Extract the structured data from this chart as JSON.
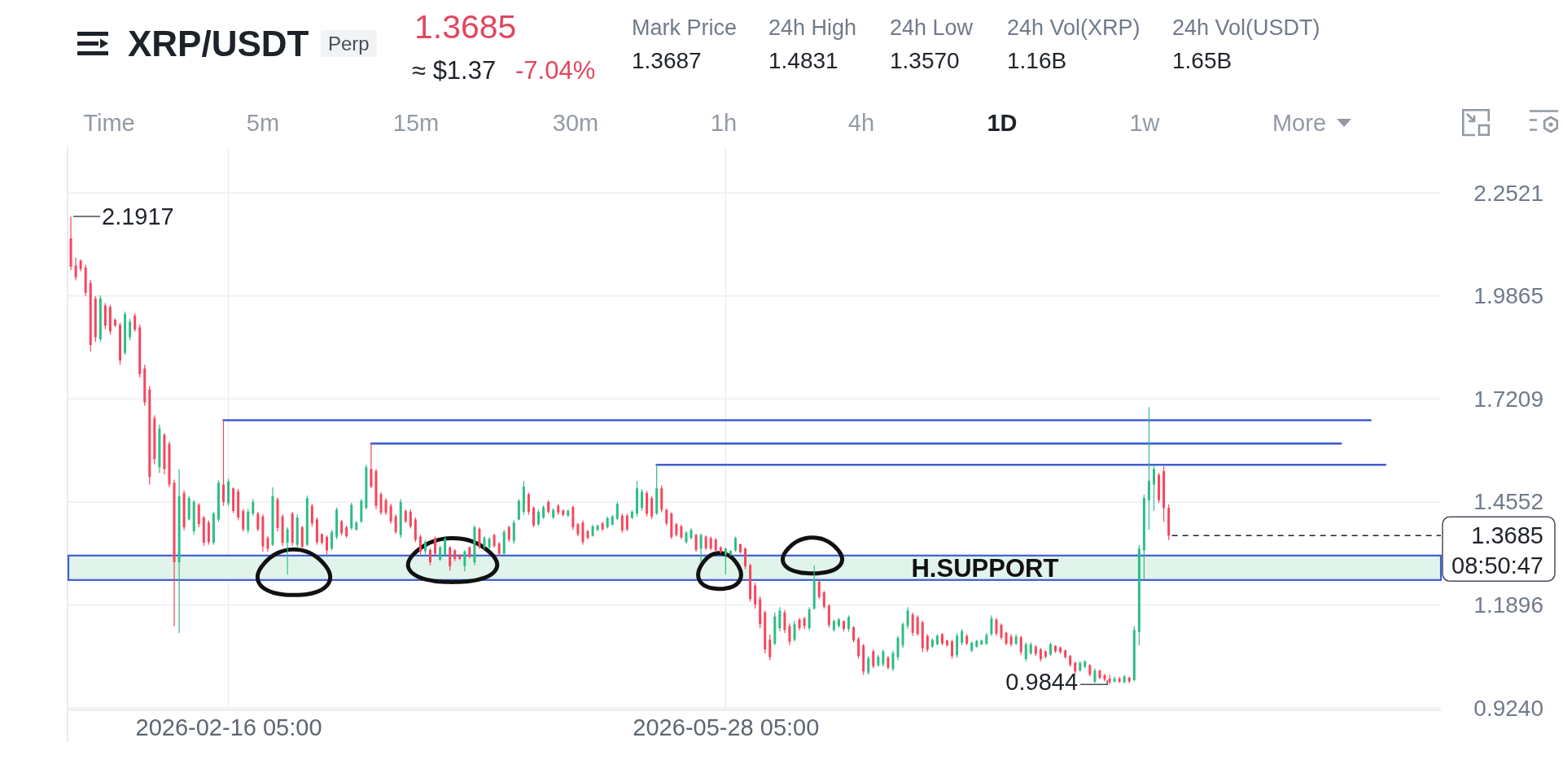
{
  "chart_data": {
    "type": "candlestick",
    "title": "XRP/USDT",
    "subtitle": "Perp",
    "x": [
      "2026-01-15T05:00",
      "2026-01-16T05:00",
      "2026-01-17T05:00",
      "2026-01-18T05:00",
      "2026-01-19T05:00",
      "2026-01-20T05:00",
      "2026-01-21T05:00",
      "2026-01-22T05:00",
      "2026-01-23T05:00",
      "2026-01-24T05:00",
      "2026-01-25T05:00",
      "2026-01-26T05:00",
      "2026-01-27T05:00",
      "2026-01-28T05:00",
      "2026-01-29T05:00",
      "2026-01-30T05:00",
      "2026-01-31T05:00",
      "2026-02-01T05:00",
      "2026-02-02T05:00",
      "2026-02-03T05:00",
      "2026-02-04T05:00",
      "2026-02-05T05:00",
      "2026-02-06T05:00",
      "2026-02-07T05:00",
      "2026-02-08T05:00",
      "2026-02-09T05:00",
      "2026-02-10T05:00",
      "2026-02-11T05:00",
      "2026-02-12T05:00",
      "2026-02-13T05:00",
      "2026-02-14T05:00",
      "2026-02-15T05:00",
      "2026-02-16T05:00",
      "2026-02-17T05:00",
      "2026-02-18T05:00",
      "2026-02-19T05:00",
      "2026-02-20T05:00",
      "2026-02-21T05:00",
      "2026-02-22T05:00",
      "2026-02-23T05:00",
      "2026-02-24T05:00",
      "2026-02-25T05:00",
      "2026-02-26T05:00",
      "2026-02-27T05:00",
      "2026-02-28T05:00",
      "2026-03-01T05:00",
      "2026-03-02T05:00",
      "2026-03-03T05:00",
      "2026-03-04T05:00",
      "2026-03-05T05:00",
      "2026-03-06T05:00",
      "2026-03-07T05:00",
      "2026-03-08T05:00",
      "2026-03-09T05:00",
      "2026-03-10T05:00",
      "2026-03-11T05:00",
      "2026-03-12T05:00",
      "2026-03-13T05:00",
      "2026-03-14T05:00",
      "2026-03-15T05:00",
      "2026-03-16T05:00",
      "2026-03-17T05:00",
      "2026-03-18T05:00",
      "2026-03-19T05:00",
      "2026-03-20T05:00",
      "2026-03-21T05:00",
      "2026-03-22T05:00",
      "2026-03-23T05:00",
      "2026-03-24T05:00",
      "2026-03-25T05:00",
      "2026-03-26T05:00",
      "2026-03-27T05:00",
      "2026-03-28T05:00",
      "2026-03-29T05:00",
      "2026-03-30T05:00",
      "2026-03-31T05:00",
      "2026-04-01T05:00",
      "2026-04-02T05:00",
      "2026-04-03T05:00",
      "2026-04-04T05:00",
      "2026-04-05T05:00",
      "2026-04-06T05:00",
      "2026-04-07T05:00",
      "2026-04-08T05:00",
      "2026-04-09T05:00",
      "2026-04-10T05:00",
      "2026-04-11T05:00",
      "2026-04-12T05:00",
      "2026-04-13T05:00",
      "2026-04-14T05:00",
      "2026-04-15T05:00",
      "2026-04-16T05:00",
      "2026-04-17T05:00",
      "2026-04-18T05:00",
      "2026-04-19T05:00",
      "2026-04-20T05:00",
      "2026-04-21T05:00",
      "2026-04-22T05:00",
      "2026-04-23T05:00",
      "2026-04-24T05:00",
      "2026-04-25T05:00",
      "2026-04-26T05:00",
      "2026-04-27T05:00",
      "2026-04-28T05:00",
      "2026-04-29T05:00",
      "2026-04-30T05:00",
      "2026-05-01T05:00",
      "2026-05-02T05:00",
      "2026-05-03T05:00",
      "2026-05-04T05:00",
      "2026-05-05T05:00",
      "2026-05-06T05:00",
      "2026-05-07T05:00",
      "2026-05-08T05:00",
      "2026-05-09T05:00",
      "2026-05-10T05:00",
      "2026-05-11T05:00",
      "2026-05-12T05:00",
      "2026-05-13T05:00",
      "2026-05-14T05:00",
      "2026-05-15T05:00",
      "2026-05-16T05:00",
      "2026-05-17T05:00",
      "2026-05-18T05:00",
      "2026-05-19T05:00",
      "2026-05-20T05:00",
      "2026-05-21T05:00",
      "2026-05-22T05:00",
      "2026-05-23T05:00",
      "2026-05-24T05:00",
      "2026-05-25T05:00",
      "2026-05-26T05:00",
      "2026-05-27T05:00",
      "2026-05-28T05:00",
      "2026-05-29T05:00",
      "2026-05-30T05:00",
      "2026-05-31T05:00",
      "2026-06-01T05:00",
      "2026-06-02T05:00",
      "2026-06-03T05:00",
      "2026-06-04T05:00",
      "2026-06-05T05:00",
      "2026-06-06T05:00",
      "2026-06-07T05:00",
      "2026-06-08T05:00",
      "2026-06-09T05:00",
      "2026-06-10T05:00",
      "2026-06-11T05:00",
      "2026-06-12T05:00",
      "2026-06-13T05:00",
      "2026-06-14T05:00",
      "2026-06-15T05:00",
      "2026-06-16T05:00",
      "2026-06-17T05:00",
      "2026-06-18T05:00",
      "2026-06-19T05:00",
      "2026-06-20T05:00",
      "2026-06-21T05:00",
      "2026-06-22T05:00",
      "2026-06-23T05:00",
      "2026-06-24T05:00",
      "2026-06-25T05:00",
      "2026-06-26T05:00",
      "2026-06-27T05:00",
      "2026-06-28T05:00",
      "2026-06-29T05:00",
      "2026-06-30T05:00",
      "2026-07-01T05:00",
      "2026-07-02T05:00",
      "2026-07-03T05:00",
      "2026-07-04T05:00",
      "2026-07-05T05:00",
      "2026-07-06T05:00",
      "2026-07-07T05:00",
      "2026-07-08T05:00",
      "2026-07-09T05:00",
      "2026-07-10T05:00",
      "2026-07-11T05:00",
      "2026-07-12T05:00",
      "2026-07-13T05:00",
      "2026-07-14T05:00",
      "2026-07-15T05:00",
      "2026-07-16T05:00",
      "2026-07-17T05:00",
      "2026-07-18T05:00",
      "2026-07-19T05:00",
      "2026-07-20T05:00",
      "2026-07-21T05:00",
      "2026-07-22T05:00",
      "2026-07-23T05:00",
      "2026-07-24T05:00",
      "2026-07-25T05:00",
      "2026-07-26T05:00",
      "2026-07-27T05:00",
      "2026-07-28T05:00",
      "2026-07-29T05:00",
      "2026-07-30T05:00",
      "2026-07-31T05:00",
      "2026-08-01T05:00",
      "2026-08-02T05:00",
      "2026-08-03T05:00",
      "2026-08-04T05:00",
      "2026-08-05T05:00",
      "2026-08-06T05:00",
      "2026-08-07T05:00",
      "2026-08-08T05:00",
      "2026-08-09T05:00",
      "2026-08-10T05:00",
      "2026-08-11T05:00",
      "2026-08-12T05:00",
      "2026-08-13T05:00",
      "2026-08-14T05:00",
      "2026-08-15T05:00",
      "2026-08-16T05:00",
      "2026-08-17T05:00",
      "2026-08-18T05:00",
      "2026-08-19T05:00",
      "2026-08-20T05:00",
      "2026-08-21T05:00",
      "2026-08-22T05:00",
      "2026-08-23T05:00",
      "2026-08-24T05:00",
      "2026-08-25T05:00",
      "2026-08-26T05:00"
    ],
    "ohlc": [
      [
        2.135,
        2.1917,
        2.053,
        2.062
      ],
      [
        2.065,
        2.085,
        2.027,
        2.035
      ],
      [
        2.078,
        2.081,
        2.05,
        2.056
      ],
      [
        2.06,
        2.067,
        1.986,
        1.995
      ],
      [
        2.02,
        2.028,
        1.843,
        1.86
      ],
      [
        1.98,
        1.986,
        1.868,
        1.88
      ],
      [
        1.875,
        1.988,
        1.868,
        1.98
      ],
      [
        1.962,
        1.968,
        1.901,
        1.91
      ],
      [
        1.958,
        1.964,
        1.887,
        1.895
      ],
      [
        1.925,
        1.929,
        1.907,
        1.91
      ],
      [
        1.912,
        1.918,
        1.809,
        1.82
      ],
      [
        1.84,
        1.946,
        1.835,
        1.94
      ],
      [
        1.88,
        1.927,
        1.872,
        1.92
      ],
      [
        1.935,
        1.942,
        1.894,
        1.9
      ],
      [
        1.905,
        1.913,
        1.776,
        1.785
      ],
      [
        1.8,
        1.809,
        1.703,
        1.712
      ],
      [
        1.745,
        1.754,
        1.5,
        1.52
      ],
      [
        1.672,
        1.679,
        1.552,
        1.565
      ],
      [
        1.545,
        1.655,
        1.53,
        1.645
      ],
      [
        1.628,
        1.633,
        1.526,
        1.54
      ],
      [
        1.605,
        1.611,
        1.493,
        1.5
      ],
      [
        1.505,
        1.513,
        1.135,
        1.3
      ],
      [
        1.3,
        1.54,
        1.117,
        1.47
      ],
      [
        1.478,
        1.485,
        1.382,
        1.39
      ],
      [
        1.41,
        1.471,
        1.408,
        1.465
      ],
      [
        1.38,
        1.46,
        1.371,
        1.455
      ],
      [
        1.448,
        1.452,
        1.39,
        1.398
      ],
      [
        1.415,
        1.419,
        1.342,
        1.35
      ],
      [
        1.402,
        1.408,
        1.345,
        1.352
      ],
      [
        1.35,
        1.43,
        1.345,
        1.425
      ],
      [
        1.41,
        1.511,
        1.404,
        1.505
      ],
      [
        1.5,
        1.666,
        1.445,
        1.455
      ],
      [
        1.452,
        1.515,
        1.445,
        1.508
      ],
      [
        1.49,
        1.493,
        1.426,
        1.432
      ],
      [
        1.482,
        1.489,
        1.408,
        1.415
      ],
      [
        1.432,
        1.437,
        1.379,
        1.385
      ],
      [
        1.382,
        1.437,
        1.375,
        1.43
      ],
      [
        1.425,
        1.463,
        1.419,
        1.455
      ],
      [
        1.425,
        1.43,
        1.379,
        1.385
      ],
      [
        1.418,
        1.423,
        1.327,
        1.34
      ],
      [
        1.362,
        1.367,
        1.327,
        1.335
      ],
      [
        1.345,
        1.493,
        1.342,
        1.47
      ],
      [
        1.462,
        1.467,
        1.379,
        1.388
      ],
      [
        1.418,
        1.423,
        1.342,
        1.35
      ],
      [
        1.35,
        1.39,
        1.268,
        1.385
      ],
      [
        1.425,
        1.43,
        1.342,
        1.35
      ],
      [
        1.345,
        1.423,
        1.338,
        1.415
      ],
      [
        1.39,
        1.393,
        1.334,
        1.34
      ],
      [
        1.345,
        1.472,
        1.341,
        1.465
      ],
      [
        1.445,
        1.451,
        1.392,
        1.4
      ],
      [
        1.41,
        1.415,
        1.345,
        1.352
      ],
      [
        1.372,
        1.374,
        1.345,
        1.35
      ],
      [
        1.365,
        1.369,
        1.32,
        1.33
      ],
      [
        1.335,
        1.383,
        1.331,
        1.378
      ],
      [
        1.365,
        1.441,
        1.359,
        1.435
      ],
      [
        1.405,
        1.409,
        1.369,
        1.375
      ],
      [
        1.39,
        1.394,
        1.362,
        1.367
      ],
      [
        1.388,
        1.453,
        1.383,
        1.448
      ],
      [
        1.384,
        1.406,
        1.381,
        1.402
      ],
      [
        1.405,
        1.463,
        1.401,
        1.458
      ],
      [
        1.44,
        1.551,
        1.436,
        1.545
      ],
      [
        1.54,
        1.606,
        1.491,
        1.495
      ],
      [
        1.535,
        1.54,
        1.436,
        1.445
      ],
      [
        1.475,
        1.481,
        1.422,
        1.428
      ],
      [
        1.46,
        1.465,
        1.422,
        1.428
      ],
      [
        1.445,
        1.451,
        1.399,
        1.405
      ],
      [
        1.418,
        1.423,
        1.373,
        1.378
      ],
      [
        1.37,
        1.463,
        1.362,
        1.455
      ],
      [
        1.432,
        1.436,
        1.401,
        1.405
      ],
      [
        1.43,
        1.436,
        1.387,
        1.392
      ],
      [
        1.41,
        1.415,
        1.352,
        1.358
      ],
      [
        1.366,
        1.371,
        1.32,
        1.328
      ],
      [
        1.328,
        1.357,
        1.32,
        1.352
      ],
      [
        1.332,
        1.336,
        1.292,
        1.3
      ],
      [
        1.362,
        1.366,
        1.317,
        1.322
      ],
      [
        1.306,
        1.341,
        1.303,
        1.338
      ],
      [
        1.32,
        1.366,
        1.317,
        1.36
      ],
      [
        1.338,
        1.341,
        1.278,
        1.29
      ],
      [
        1.33,
        1.334,
        1.303,
        1.308
      ],
      [
        1.319,
        1.321,
        1.305,
        1.308
      ],
      [
        1.29,
        1.331,
        1.276,
        1.328
      ],
      [
        1.338,
        1.341,
        1.31,
        1.314
      ],
      [
        1.3,
        1.395,
        1.292,
        1.39
      ],
      [
        1.386,
        1.39,
        1.334,
        1.34
      ],
      [
        1.338,
        1.367,
        1.334,
        1.362
      ],
      [
        1.338,
        1.364,
        1.334,
        1.36
      ],
      [
        1.37,
        1.373,
        1.338,
        1.342
      ],
      [
        1.348,
        1.352,
        1.317,
        1.322
      ],
      [
        1.322,
        1.383,
        1.317,
        1.378
      ],
      [
        1.39,
        1.394,
        1.352,
        1.358
      ],
      [
        1.355,
        1.408,
        1.348,
        1.402
      ],
      [
        1.41,
        1.463,
        1.408,
        1.458
      ],
      [
        1.43,
        1.509,
        1.422,
        1.495
      ],
      [
        1.475,
        1.479,
        1.422,
        1.43
      ],
      [
        1.44,
        1.444,
        1.39,
        1.395
      ],
      [
        1.398,
        1.436,
        1.394,
        1.43
      ],
      [
        1.415,
        1.446,
        1.411,
        1.442
      ],
      [
        1.455,
        1.46,
        1.425,
        1.43
      ],
      [
        1.415,
        1.439,
        1.411,
        1.435
      ],
      [
        1.445,
        1.45,
        1.422,
        1.428
      ],
      [
        1.433,
        1.436,
        1.418,
        1.422
      ],
      [
        1.42,
        1.436,
        1.416,
        1.432
      ],
      [
        1.442,
        1.446,
        1.383,
        1.39
      ],
      [
        1.398,
        1.401,
        1.367,
        1.372
      ],
      [
        1.402,
        1.408,
        1.345,
        1.352
      ],
      [
        1.38,
        1.383,
        1.359,
        1.362
      ],
      [
        1.368,
        1.397,
        1.366,
        1.392
      ],
      [
        1.383,
        1.397,
        1.38,
        1.394
      ],
      [
        1.4,
        1.404,
        1.38,
        1.385
      ],
      [
        1.39,
        1.418,
        1.387,
        1.413
      ],
      [
        1.397,
        1.422,
        1.394,
        1.418
      ],
      [
        1.412,
        1.455,
        1.408,
        1.45
      ],
      [
        1.42,
        1.425,
        1.376,
        1.382
      ],
      [
        1.42,
        1.425,
        1.38,
        1.385
      ],
      [
        1.414,
        1.434,
        1.411,
        1.43
      ],
      [
        1.425,
        1.509,
        1.418,
        1.49
      ],
      [
        1.44,
        1.488,
        1.432,
        1.482
      ],
      [
        1.478,
        1.484,
        1.418,
        1.425
      ],
      [
        1.465,
        1.47,
        1.411,
        1.418
      ],
      [
        1.425,
        1.551,
        1.422,
        1.49
      ],
      [
        1.49,
        1.498,
        1.429,
        1.435
      ],
      [
        1.435,
        1.439,
        1.394,
        1.4
      ],
      [
        1.425,
        1.429,
        1.359,
        1.365
      ],
      [
        1.398,
        1.401,
        1.366,
        1.37
      ],
      [
        1.392,
        1.397,
        1.359,
        1.364
      ],
      [
        1.352,
        1.38,
        1.348,
        1.376
      ],
      [
        1.362,
        1.387,
        1.359,
        1.383
      ],
      [
        1.37,
        1.373,
        1.327,
        1.332
      ],
      [
        1.335,
        1.374,
        1.3,
        1.37
      ],
      [
        1.366,
        1.369,
        1.331,
        1.336
      ],
      [
        1.362,
        1.366,
        1.331,
        1.335
      ],
      [
        1.358,
        1.362,
        1.325,
        1.33
      ],
      [
        1.338,
        1.341,
        1.322,
        1.326
      ],
      [
        1.32,
        1.338,
        1.268,
        1.335
      ],
      [
        1.32,
        1.331,
        1.316,
        1.329
      ],
      [
        1.33,
        1.366,
        1.327,
        1.362
      ],
      [
        1.346,
        1.348,
        1.322,
        1.326
      ],
      [
        1.335,
        1.338,
        1.282,
        1.29
      ],
      [
        1.292,
        1.296,
        1.198,
        1.205
      ],
      [
        1.24,
        1.247,
        1.18,
        1.19
      ],
      [
        1.205,
        1.212,
        1.13,
        1.14
      ],
      [
        1.17,
        1.175,
        1.065,
        1.075
      ],
      [
        1.1,
        1.114,
        1.047,
        1.055
      ],
      [
        1.09,
        1.17,
        1.086,
        1.16
      ],
      [
        1.13,
        1.184,
        1.121,
        1.175
      ],
      [
        1.17,
        1.177,
        1.117,
        1.125
      ],
      [
        1.135,
        1.142,
        1.086,
        1.095
      ],
      [
        1.1,
        1.149,
        1.096,
        1.14
      ],
      [
        1.152,
        1.156,
        1.124,
        1.13
      ],
      [
        1.155,
        1.159,
        1.128,
        1.135
      ],
      [
        1.13,
        1.184,
        1.124,
        1.178
      ],
      [
        1.18,
        1.292,
        1.177,
        1.255
      ],
      [
        1.25,
        1.254,
        1.205,
        1.21
      ],
      [
        1.222,
        1.226,
        1.18,
        1.185
      ],
      [
        1.188,
        1.191,
        1.131,
        1.138
      ],
      [
        1.125,
        1.152,
        1.121,
        1.148
      ],
      [
        1.135,
        1.156,
        1.131,
        1.152
      ],
      [
        1.148,
        1.149,
        1.121,
        1.128
      ],
      [
        1.128,
        1.163,
        1.121,
        1.158
      ],
      [
        1.132,
        1.135,
        1.093,
        1.098
      ],
      [
        1.102,
        1.107,
        1.051,
        1.058
      ],
      [
        1.085,
        1.089,
        1.009,
        1.018
      ],
      [
        1.015,
        1.058,
        1.009,
        1.052
      ],
      [
        1.07,
        1.075,
        1.026,
        1.032
      ],
      [
        1.034,
        1.061,
        1.03,
        1.056
      ],
      [
        1.036,
        1.075,
        1.03,
        1.07
      ],
      [
        1.054,
        1.058,
        1.023,
        1.028
      ],
      [
        1.025,
        1.072,
        1.019,
        1.066
      ],
      [
        1.055,
        1.11,
        1.047,
        1.105
      ],
      [
        1.085,
        1.145,
        1.079,
        1.14
      ],
      [
        1.135,
        1.184,
        1.128,
        1.175
      ],
      [
        1.165,
        1.17,
        1.11,
        1.118
      ],
      [
        1.158,
        1.163,
        1.11,
        1.115
      ],
      [
        1.145,
        1.149,
        1.068,
        1.078
      ],
      [
        1.11,
        1.114,
        1.068,
        1.075
      ],
      [
        1.082,
        1.103,
        1.079,
        1.1
      ],
      [
        1.088,
        1.114,
        1.086,
        1.11
      ],
      [
        1.114,
        1.117,
        1.086,
        1.09
      ],
      [
        1.098,
        1.1,
        1.082,
        1.086
      ],
      [
        1.096,
        1.1,
        1.051,
        1.058
      ],
      [
        1.06,
        1.117,
        1.054,
        1.11
      ],
      [
        1.092,
        1.128,
        1.086,
        1.122
      ],
      [
        1.11,
        1.114,
        1.086,
        1.09
      ],
      [
        1.072,
        1.096,
        1.068,
        1.092
      ],
      [
        1.082,
        1.1,
        1.079,
        1.097
      ],
      [
        1.088,
        1.1,
        1.086,
        1.098
      ],
      [
        1.09,
        1.117,
        1.086,
        1.112
      ],
      [
        1.115,
        1.163,
        1.11,
        1.155
      ],
      [
        1.152,
        1.156,
        1.11,
        1.116
      ],
      [
        1.138,
        1.142,
        1.1,
        1.105
      ],
      [
        1.118,
        1.121,
        1.086,
        1.09
      ],
      [
        1.108,
        1.114,
        1.082,
        1.088
      ],
      [
        1.09,
        1.114,
        1.086,
        1.108
      ],
      [
        1.106,
        1.11,
        1.061,
        1.068
      ],
      [
        1.05,
        1.093,
        1.044,
        1.088
      ],
      [
        1.065,
        1.093,
        1.061,
        1.088
      ],
      [
        1.082,
        1.086,
        1.058,
        1.064
      ],
      [
        1.075,
        1.079,
        1.044,
        1.05
      ],
      [
        1.07,
        1.072,
        1.052,
        1.056
      ],
      [
        1.062,
        1.093,
        1.058,
        1.088
      ],
      [
        1.084,
        1.086,
        1.066,
        1.07
      ],
      [
        1.08,
        1.082,
        1.063,
        1.068
      ],
      [
        1.072,
        1.075,
        1.051,
        1.055
      ],
      [
        1.058,
        1.061,
        1.03,
        1.035
      ],
      [
        1.04,
        1.044,
        1.012,
        1.018
      ],
      [
        1.02,
        1.044,
        1.018,
        1.04
      ],
      [
        1.03,
        1.047,
        1.026,
        1.044
      ],
      [
        1.034,
        1.037,
        1.005,
        1.01
      ],
      [
        0.992,
        1.026,
        0.988,
        1.02
      ],
      [
        1.02,
        1.023,
        0.998,
        1.002
      ],
      [
        1.008,
        1.012,
        0.993,
        0.997
      ],
      [
        1.0,
        1.009,
        0.9844,
        0.99
      ],
      [
        0.992,
        1.005,
        0.99,
        1.0
      ],
      [
        1.0,
        1.005,
        0.988,
        0.992
      ],
      [
        0.99,
        1.009,
        0.988,
        1.005
      ],
      [
        1.002,
        1.005,
        0.988,
        0.992
      ],
      [
        0.996,
        1.135,
        0.993,
        1.125
      ],
      [
        1.12,
        1.344,
        1.086,
        1.335
      ],
      [
        1.33,
        1.474,
        1.257,
        1.465
      ],
      [
        1.46,
        1.7,
        1.383,
        1.51
      ],
      [
        1.5,
        1.551,
        1.432,
        1.54
      ],
      [
        1.525,
        1.53,
        1.453,
        1.46
      ],
      [
        1.535,
        1.547,
        1.404,
        1.44
      ],
      [
        1.44,
        1.449,
        1.357,
        1.3685
      ]
    ],
    "colors": [
      "#f6465d",
      "#f6465d",
      "#f6465d",
      "#f6465d",
      "#f6465d",
      "#f6465d",
      "#2ebd85",
      "#f6465d",
      "#f6465d",
      "#f6465d",
      "#f6465d",
      "#2ebd85",
      "#2ebd85",
      "#f6465d",
      "#f6465d",
      "#f6465d",
      "#f6465d",
      "#f6465d",
      "#2ebd85",
      "#f6465d",
      "#f6465d",
      "#f6465d",
      "#2ebd85",
      "#f6465d",
      "#2ebd85",
      "#2ebd85",
      "#f6465d",
      "#f6465d",
      "#f6465d",
      "#2ebd85",
      "#2ebd85",
      "#f6465d",
      "#2ebd85",
      "#f6465d",
      "#f6465d",
      "#f6465d",
      "#2ebd85",
      "#2ebd85",
      "#f6465d",
      "#f6465d",
      "#f6465d",
      "#2ebd85",
      "#f6465d",
      "#f6465d",
      "#2ebd85",
      "#f6465d",
      "#2ebd85",
      "#f6465d",
      "#2ebd85",
      "#f6465d",
      "#f6465d",
      "#f6465d",
      "#f6465d",
      "#2ebd85",
      "#2ebd85",
      "#f6465d",
      "#f6465d",
      "#2ebd85",
      "#2ebd85",
      "#2ebd85",
      "#2ebd85",
      "#f6465d",
      "#f6465d",
      "#f6465d",
      "#f6465d",
      "#f6465d",
      "#f6465d",
      "#2ebd85",
      "#f6465d",
      "#f6465d",
      "#f6465d",
      "#f6465d",
      "#2ebd85",
      "#f6465d",
      "#f6465d",
      "#2ebd85",
      "#2ebd85",
      "#f6465d",
      "#f6465d",
      "#f6465d",
      "#2ebd85",
      "#f6465d",
      "#2ebd85",
      "#f6465d",
      "#2ebd85",
      "#2ebd85",
      "#f6465d",
      "#f6465d",
      "#2ebd85",
      "#f6465d",
      "#2ebd85",
      "#2ebd85",
      "#2ebd85",
      "#f6465d",
      "#f6465d",
      "#2ebd85",
      "#2ebd85",
      "#f6465d",
      "#2ebd85",
      "#f6465d",
      "#f6465d",
      "#2ebd85",
      "#f6465d",
      "#f6465d",
      "#f6465d",
      "#f6465d",
      "#2ebd85",
      "#2ebd85",
      "#f6465d",
      "#2ebd85",
      "#2ebd85",
      "#2ebd85",
      "#f6465d",
      "#f6465d",
      "#2ebd85",
      "#2ebd85",
      "#2ebd85",
      "#f6465d",
      "#f6465d",
      "#2ebd85",
      "#f6465d",
      "#f6465d",
      "#f6465d",
      "#f6465d",
      "#f6465d",
      "#2ebd85",
      "#2ebd85",
      "#f6465d",
      "#2ebd85",
      "#f6465d",
      "#f6465d",
      "#f6465d",
      "#f6465d",
      "#2ebd85",
      "#2ebd85",
      "#2ebd85",
      "#f6465d",
      "#f6465d",
      "#f6465d",
      "#f6465d",
      "#f6465d",
      "#f6465d",
      "#f6465d",
      "#2ebd85",
      "#2ebd85",
      "#f6465d",
      "#f6465d",
      "#2ebd85",
      "#f6465d",
      "#f6465d",
      "#2ebd85",
      "#2ebd85",
      "#f6465d",
      "#f6465d",
      "#f6465d",
      "#2ebd85",
      "#2ebd85",
      "#f6465d",
      "#2ebd85",
      "#f6465d",
      "#f6465d",
      "#f6465d",
      "#2ebd85",
      "#f6465d",
      "#2ebd85",
      "#2ebd85",
      "#f6465d",
      "#2ebd85",
      "#2ebd85",
      "#2ebd85",
      "#2ebd85",
      "#f6465d",
      "#f6465d",
      "#f6465d",
      "#f6465d",
      "#2ebd85",
      "#2ebd85",
      "#f6465d",
      "#f6465d",
      "#f6465d",
      "#2ebd85",
      "#2ebd85",
      "#f6465d",
      "#2ebd85",
      "#2ebd85",
      "#2ebd85",
      "#2ebd85",
      "#2ebd85",
      "#f6465d",
      "#f6465d",
      "#f6465d",
      "#f6465d",
      "#2ebd85",
      "#f6465d",
      "#2ebd85",
      "#2ebd85",
      "#f6465d",
      "#f6465d",
      "#f6465d",
      "#2ebd85",
      "#f6465d",
      "#f6465d",
      "#f6465d",
      "#f6465d",
      "#f6465d",
      "#2ebd85",
      "#2ebd85",
      "#f6465d",
      "#2ebd85",
      "#f6465d",
      "#f6465d",
      "#f6465d",
      "#2ebd85",
      "#f6465d",
      "#2ebd85",
      "#f6465d",
      "#2ebd85",
      "#2ebd85",
      "#2ebd85",
      "#2ebd85",
      "#2ebd85",
      "#f6465d",
      "#f6465d",
      "#f6465d"
    ],
    "series": [
      {
        "type": "line",
        "x": [
          "2026-02-15T05:00",
          "2026-10-06T05:00"
        ],
        "values": [
          1.666,
          1.666
        ],
        "color": "#3f5fd1"
      },
      {
        "type": "line",
        "x": [
          "2026-03-17T05:00",
          "2026-09-30T05:00"
        ],
        "values": [
          1.606,
          1.606
        ],
        "color": "#3f5fd1"
      },
      {
        "type": "line",
        "x": [
          "2026-05-14T05:00",
          "2026-10-09T05:00"
        ],
        "values": [
          1.551,
          1.551
        ],
        "color": "#3f5fd1"
      }
    ],
    "xlim": [
      "2026-01-14T13:00",
      "2026-10-20T12:00"
    ],
    "xticks": [
      {
        "value": "2026-02-16T05:00",
        "label": "2026-02-16 05:00"
      },
      {
        "value": "2026-05-28T05:00",
        "label": "2026-05-28 05:00"
      }
    ],
    "ylim": [
      0.92,
      2.37
    ],
    "yticks": [
      2.2521,
      1.9865,
      1.7209,
      1.4552,
      1.1896,
      {
        "value": 0.924,
        "label": "0.9240"
      }
    ],
    "grid": true,
    "ref_lines": [
      {
        "axis": "y",
        "value": 1.3685,
        "label": "1.3685",
        "line_style": "dashed",
        "color": "#1e2329"
      }
    ],
    "bands": [
      {
        "axis": "y",
        "from": 1.254,
        "to": 1.317,
        "label": "H.SUPPORT",
        "color": "#e1f4ec"
      }
    ],
    "annotations": [
      "1.3685",
      "≈ $1.37",
      "-7.04%",
      "Mark Price",
      "1.3687",
      "24h High",
      "1.4831",
      "24h Low",
      "1.3570",
      "24h Vol(XRP)",
      "1.16B",
      "24h Vol(USDT)",
      "1.65B",
      "Time",
      "5m",
      "15m",
      "30m",
      "1h",
      "4h",
      "1D",
      "1w",
      "More",
      "08:50:47",
      {
        "text": "2.1917",
        "x": "2026-01-15T05:00",
        "y": 2.1917
      },
      {
        "text": "0.9844",
        "x": "2026-08-14T05:00",
        "y": 0.9844
      }
    ]
  }
}
